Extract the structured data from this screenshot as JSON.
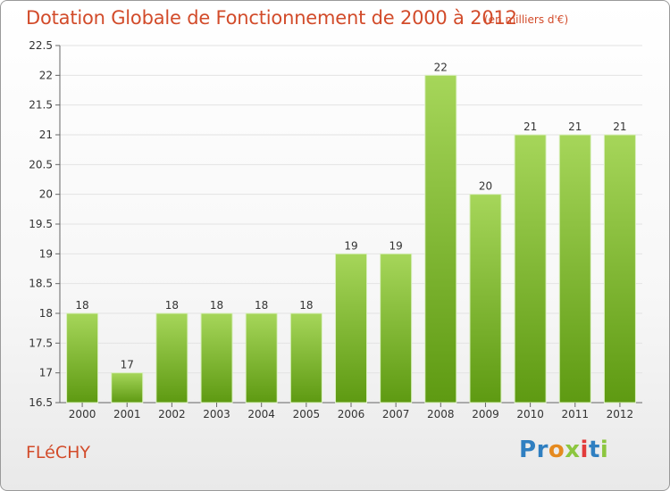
{
  "header": {
    "title": "Dotation Globale de Fonctionnement de 2000 à 2012",
    "subtitle": "(en milliers d'€)"
  },
  "footer": {
    "commune": "FLéCHY",
    "logo": {
      "letters": [
        "P",
        "r",
        "o",
        "x",
        "i",
        "t",
        "i"
      ],
      "colors": [
        "#2f7fc1",
        "#2f7fc1",
        "#e58a1f",
        "#8cc63f",
        "#e23b3b",
        "#2f7fc1",
        "#8cc63f"
      ]
    }
  },
  "colors": {
    "bar_top": "#a6d65a",
    "bar_bottom": "#5e9a12",
    "axis": "#666666",
    "grid": "#e3e3e3"
  },
  "chart_data": {
    "type": "bar",
    "title": "Dotation Globale de Fonctionnement de 2000 à 2012",
    "subtitle": "(en milliers d'€)",
    "categories": [
      "2000",
      "2001",
      "2002",
      "2003",
      "2004",
      "2005",
      "2006",
      "2007",
      "2008",
      "2009",
      "2010",
      "2011",
      "2012"
    ],
    "values": [
      18,
      17,
      18,
      18,
      18,
      18,
      19,
      19,
      22,
      20,
      21,
      21,
      21
    ],
    "value_labels": [
      "18",
      "17",
      "18",
      "18",
      "18",
      "18",
      "19",
      "19",
      "22",
      "20",
      "21",
      "21",
      "21"
    ],
    "ylim": [
      16.5,
      22.5
    ],
    "yticks": [
      "16.5",
      "17",
      "17.5",
      "18",
      "18.5",
      "19",
      "19.5",
      "20",
      "20.5",
      "21",
      "21.5",
      "22",
      "22.5"
    ],
    "grid": true,
    "legend": "none"
  }
}
